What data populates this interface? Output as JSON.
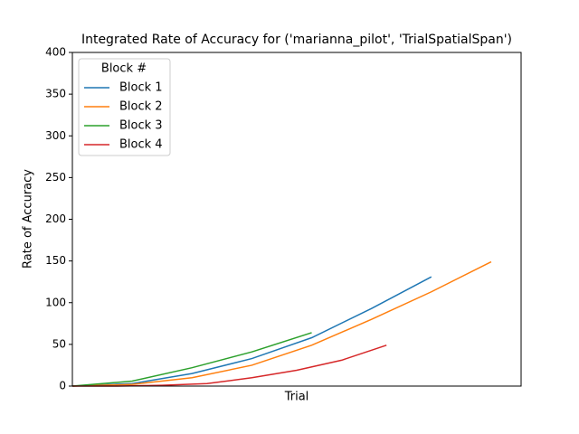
{
  "chart_data": {
    "type": "line",
    "title": "Integrated Rate of Accuracy for ('marianna_pilot', 'TrialSpatialSpan')",
    "x_label": "Trial",
    "y_label": "Rate of Accuracy",
    "legend_title": "Block #",
    "legend": "upper left",
    "xlim": [
      0,
      75
    ],
    "ylim": [
      0,
      400
    ],
    "yticks": [
      0,
      50,
      100,
      150,
      200,
      250,
      300,
      350,
      400
    ],
    "series": [
      {
        "name": "Block 1",
        "color": "#1f77b4",
        "x": [
          0,
          10,
          20,
          30,
          40,
          50,
          60
        ],
        "values": [
          0,
          3,
          15,
          33,
          58,
          93,
          131
        ]
      },
      {
        "name": "Block 2",
        "color": "#ff7f0e",
        "x": [
          0,
          10,
          20,
          30,
          40,
          50,
          60,
          70
        ],
        "values": [
          0,
          2,
          10,
          25,
          49,
          80,
          113,
          149
        ]
      },
      {
        "name": "Block 3",
        "color": "#2ca02c",
        "x": [
          0,
          10,
          20,
          30,
          40
        ],
        "values": [
          0,
          6,
          22,
          41,
          64
        ]
      },
      {
        "name": "Block 4",
        "color": "#d62728",
        "x": [
          0,
          7.5,
          15,
          22.5,
          30,
          37.5,
          45,
          52.5
        ],
        "values": [
          0,
          0,
          1,
          3,
          10,
          19,
          31,
          49
        ]
      }
    ]
  }
}
